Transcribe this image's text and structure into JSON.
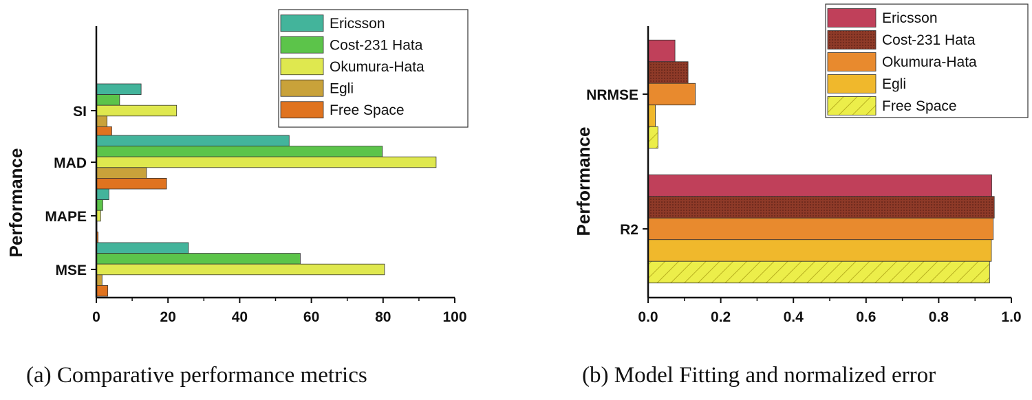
{
  "charts": [
    {
      "type": "bar",
      "orientation": "horizontal",
      "ylabel": "Performance",
      "caption": "(a) Comparative performance metrics",
      "categories": [
        "SI",
        "MAD",
        "MAPE",
        "MSE"
      ],
      "xlim": [
        0,
        100
      ],
      "xticks": [
        "0",
        "20",
        "40",
        "60",
        "80",
        "100"
      ],
      "legend_position": "top-right",
      "series": [
        {
          "name": "Ericsson",
          "color": "#43b49b",
          "values": [
            12.5,
            53.8,
            3.5,
            25.7
          ],
          "pattern": "none"
        },
        {
          "name": "Cost-231  Hata",
          "color": "#5cc44a",
          "values": [
            6.5,
            79.8,
            1.8,
            56.9
          ],
          "pattern": "none"
        },
        {
          "name": "Okumura-Hata",
          "color": "#dfe84f",
          "values": [
            22.4,
            94.8,
            1.2,
            80.4
          ],
          "pattern": "none"
        },
        {
          "name": "Egli",
          "color": "#c9a23a",
          "values": [
            3.0,
            14.0,
            0.2,
            1.6
          ],
          "pattern": "none"
        },
        {
          "name": "Free Space",
          "color": "#e0731f",
          "values": [
            4.3,
            19.6,
            0.5,
            3.2
          ],
          "pattern": "none"
        }
      ]
    },
    {
      "type": "bar",
      "orientation": "horizontal",
      "ylabel": "Performance",
      "caption": "(b) Model Fitting and normalized error",
      "categories": [
        "NRMSE",
        "R2"
      ],
      "xlim": [
        0,
        1.0
      ],
      "xticks": [
        "0.0",
        "0.2",
        "0.4",
        "0.6",
        "0.8",
        "1.0"
      ],
      "legend_position": "top-right",
      "series": [
        {
          "name": "Ericsson",
          "color": "#c0405a",
          "values": [
            0.074,
            0.946
          ],
          "pattern": "none"
        },
        {
          "name": "Cost-231 Hata",
          "color": "#8e3a28",
          "values": [
            0.11,
            0.953
          ],
          "pattern": "dots"
        },
        {
          "name": "Okumura-Hata",
          "color": "#e88a2e",
          "values": [
            0.13,
            0.95
          ],
          "pattern": "none"
        },
        {
          "name": "Egli",
          "color": "#f0b82c",
          "values": [
            0.02,
            0.945
          ],
          "pattern": "none"
        },
        {
          "name": "Free Space",
          "color": "#ecee4a",
          "values": [
            0.027,
            0.94
          ],
          "pattern": "hatch"
        }
      ]
    }
  ]
}
